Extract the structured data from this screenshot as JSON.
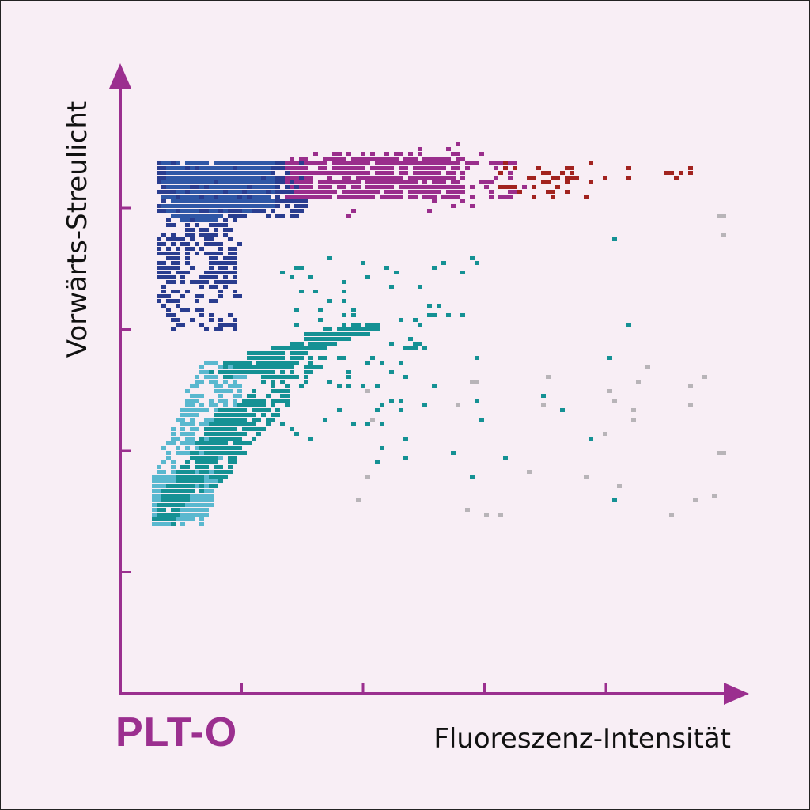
{
  "chart_data": {
    "type": "scatter",
    "title": "PLT-O",
    "xlabel": "Fluoreszenz-Intensität",
    "ylabel": "Vorwärts-Streulicht",
    "xlim": [
      0,
      5
    ],
    "ylim": [
      0,
      5
    ],
    "x_ticks": [
      1,
      2,
      3,
      4
    ],
    "y_ticks": [
      1,
      2,
      3,
      4
    ],
    "tick_labels_shown": false,
    "grid": false,
    "legend": "none",
    "axis_color": "#9b2f8f",
    "series": [
      {
        "color": "#5ab8cf",
        "clusters": [
          {
            "type": "band",
            "x0": 0.38,
            "x1": 0.52,
            "y": [
              1.43,
              1.85
            ],
            "w": [
              0.3,
              0.3
            ],
            "n": 260
          },
          {
            "type": "band",
            "x0": 0.55,
            "x1": 0.85,
            "y": [
              1.9,
              2.75
            ],
            "w": [
              0.26,
              0.2
            ],
            "n": 220
          }
        ]
      },
      {
        "color": "#159194",
        "clusters": [
          {
            "type": "band",
            "x0": 0.3,
            "x1": 0.9,
            "y": [
              1.43,
              2.35
            ],
            "w": [
              0.12,
              0.1
            ],
            "n": 260
          },
          {
            "type": "band",
            "x0": 0.55,
            "x1": 1.5,
            "y": [
              1.7,
              2.8
            ],
            "w": [
              0.2,
              0.2
            ],
            "n": 300
          },
          {
            "type": "band",
            "x0": 0.9,
            "x1": 1.95,
            "y": [
              2.65,
              3.05
            ],
            "w": [
              0.25,
              0.18
            ],
            "n": 260
          },
          {
            "type": "sparse",
            "x": [
              1.3,
              2.6
            ],
            "y": [
              2.1,
              3.6
            ],
            "n": 70
          },
          {
            "type": "sparse",
            "x": [
              1.8,
              4.2
            ],
            "y": [
              1.6,
              3.8
            ],
            "n": 30
          }
        ]
      },
      {
        "color": "#2a3d8f",
        "clusters": [
          {
            "type": "box",
            "x": [
              0.3,
              1.5
            ],
            "y": [
              3.95,
              4.4
            ],
            "n": 650
          },
          {
            "type": "box",
            "x": [
              0.3,
              0.95
            ],
            "y": [
              3.4,
              4.05
            ],
            "n": 220
          },
          {
            "type": "sparse",
            "x": [
              0.3,
              0.95
            ],
            "y": [
              3.0,
              3.5
            ],
            "n": 80
          }
        ]
      },
      {
        "color": "#2f57a6",
        "clusters": [
          {
            "type": "box",
            "x": [
              0.35,
              1.25
            ],
            "y": [
              4.0,
              4.4
            ],
            "n": 520
          },
          {
            "type": "box",
            "x": [
              0.38,
              0.8
            ],
            "y": [
              3.9,
              4.1
            ],
            "n": 80
          }
        ]
      },
      {
        "color": "#9a2e8c",
        "clusters": [
          {
            "type": "box",
            "x": [
              1.35,
              2.8
            ],
            "y": [
              4.1,
              4.45
            ],
            "n": 600
          },
          {
            "type": "sparse",
            "x": [
              2.8,
              3.3
            ],
            "y": [
              4.1,
              4.4
            ],
            "n": 40
          },
          {
            "type": "sparse",
            "x": [
              1.8,
              3.0
            ],
            "y": [
              3.95,
              4.55
            ],
            "n": 40
          }
        ]
      },
      {
        "color": "#a2231f",
        "clusters": [
          {
            "type": "box",
            "x": [
              3.1,
              3.9
            ],
            "y": [
              4.12,
              4.4
            ],
            "n": 45
          },
          {
            "type": "sparse",
            "x": [
              3.9,
              4.8
            ],
            "y": [
              4.28,
              4.35
            ],
            "n": 10
          }
        ]
      },
      {
        "color": "#b8b4b8",
        "clusters": [
          {
            "type": "sparse",
            "x": [
              1.9,
              5.0
            ],
            "y": [
              1.45,
              2.7
            ],
            "n": 30
          },
          {
            "type": "sparse",
            "x": [
              4.9,
              5.0
            ],
            "y": [
              3.8,
              4.05
            ],
            "n": 3
          }
        ]
      }
    ]
  }
}
